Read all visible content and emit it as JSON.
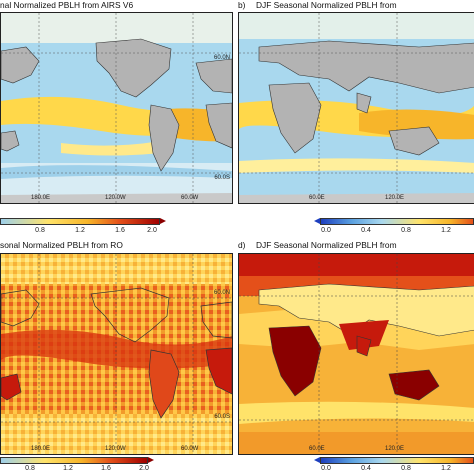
{
  "panels": {
    "a": {
      "title": "nal Normalized PBLH from AIRS V6",
      "label": ""
    },
    "b": {
      "title": "DJF Seasonal Normalized PBLH from",
      "label": "b)"
    },
    "c": {
      "title": "sonal Normalized PBLH from RO",
      "label": ""
    },
    "d": {
      "title": "DJF Seasonal Normalized PBLH from",
      "label": "d)"
    }
  },
  "axes": {
    "lat_north": "60.0N",
    "lat_south": "60.0S",
    "lon_a": [
      "180.0E",
      "120.0W",
      "60.0W"
    ],
    "lon_b": [
      "60.0E",
      "120.0E"
    ],
    "lon_c": [
      "180.0E",
      "120.0W",
      "60.0W"
    ],
    "lon_d": [
      "60.0E",
      "120.0E"
    ]
  },
  "colorbars": {
    "a_ticks": [
      "0.8",
      "1.2",
      "1.6",
      "2.0"
    ],
    "b_ticks": [
      "0.0",
      "0.4",
      "0.8",
      "1.2"
    ],
    "c_ticks": [
      "0.8",
      "1.2",
      "1.6",
      "2.0"
    ],
    "d_ticks": [
      "0.0",
      "0.4",
      "0.8",
      "1.2"
    ]
  },
  "colors": {
    "ocean_low": "#9ed0ea",
    "land": "#b3b3b3",
    "mid": "#ffe36a",
    "high": "#f2a020",
    "red": "#c61a0c",
    "darkred": "#8a0000",
    "blue": "#1d3fbf"
  }
}
